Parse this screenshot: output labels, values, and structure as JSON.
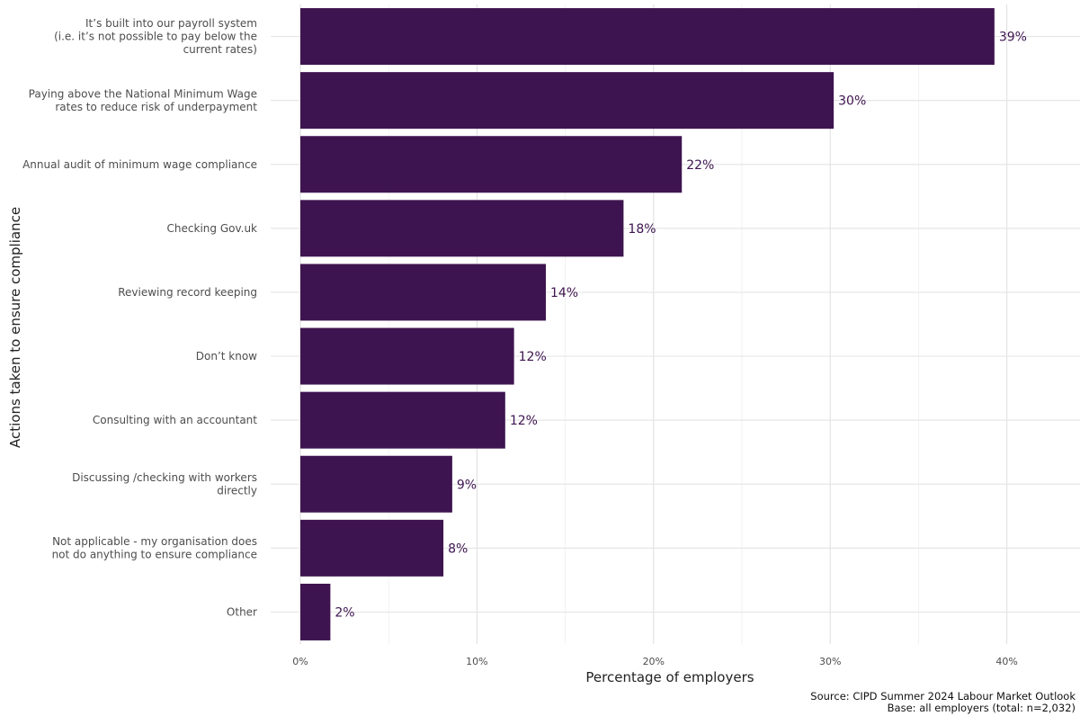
{
  "chart_data": {
    "type": "bar",
    "orientation": "horizontal",
    "categories": [
      [
        "It’s built into our payroll system",
        "(i.e. it’s not possible to pay below the",
        "current rates)"
      ],
      [
        "Paying above the National Minimum Wage",
        "rates to reduce risk of underpayment"
      ],
      [
        "Annual audit of minimum wage compliance"
      ],
      [
        "Checking Gov.uk"
      ],
      [
        "Reviewing record keeping"
      ],
      [
        "Don’t know"
      ],
      [
        "Consulting with an accountant"
      ],
      [
        "Discussing /checking with workers",
        "directly"
      ],
      [
        "Not applicable - my organisation does",
        "not do anything to ensure compliance"
      ],
      [
        "Other"
      ]
    ],
    "values": [
      39.3,
      30.2,
      21.6,
      18.3,
      13.9,
      12.1,
      11.6,
      8.6,
      8.1,
      1.7
    ],
    "value_labels": [
      "39%",
      "30%",
      "22%",
      "18%",
      "14%",
      "12%",
      "12%",
      "9%",
      "8%",
      "2%"
    ],
    "xlabel": "Percentage of employers",
    "ylabel": "Actions taken to ensure compliance",
    "xlim": [
      0,
      43
    ],
    "xticks": [
      0,
      10,
      20,
      30,
      40
    ],
    "xtick_labels": [
      "0%",
      "10%",
      "20%",
      "30%",
      "40%"
    ],
    "bar_color": "#3e1450",
    "grid": true,
    "caption": [
      "Source: CIPD Summer 2024 Labour Market Outlook",
      "Base: all employers (total: n=2,032)"
    ]
  }
}
